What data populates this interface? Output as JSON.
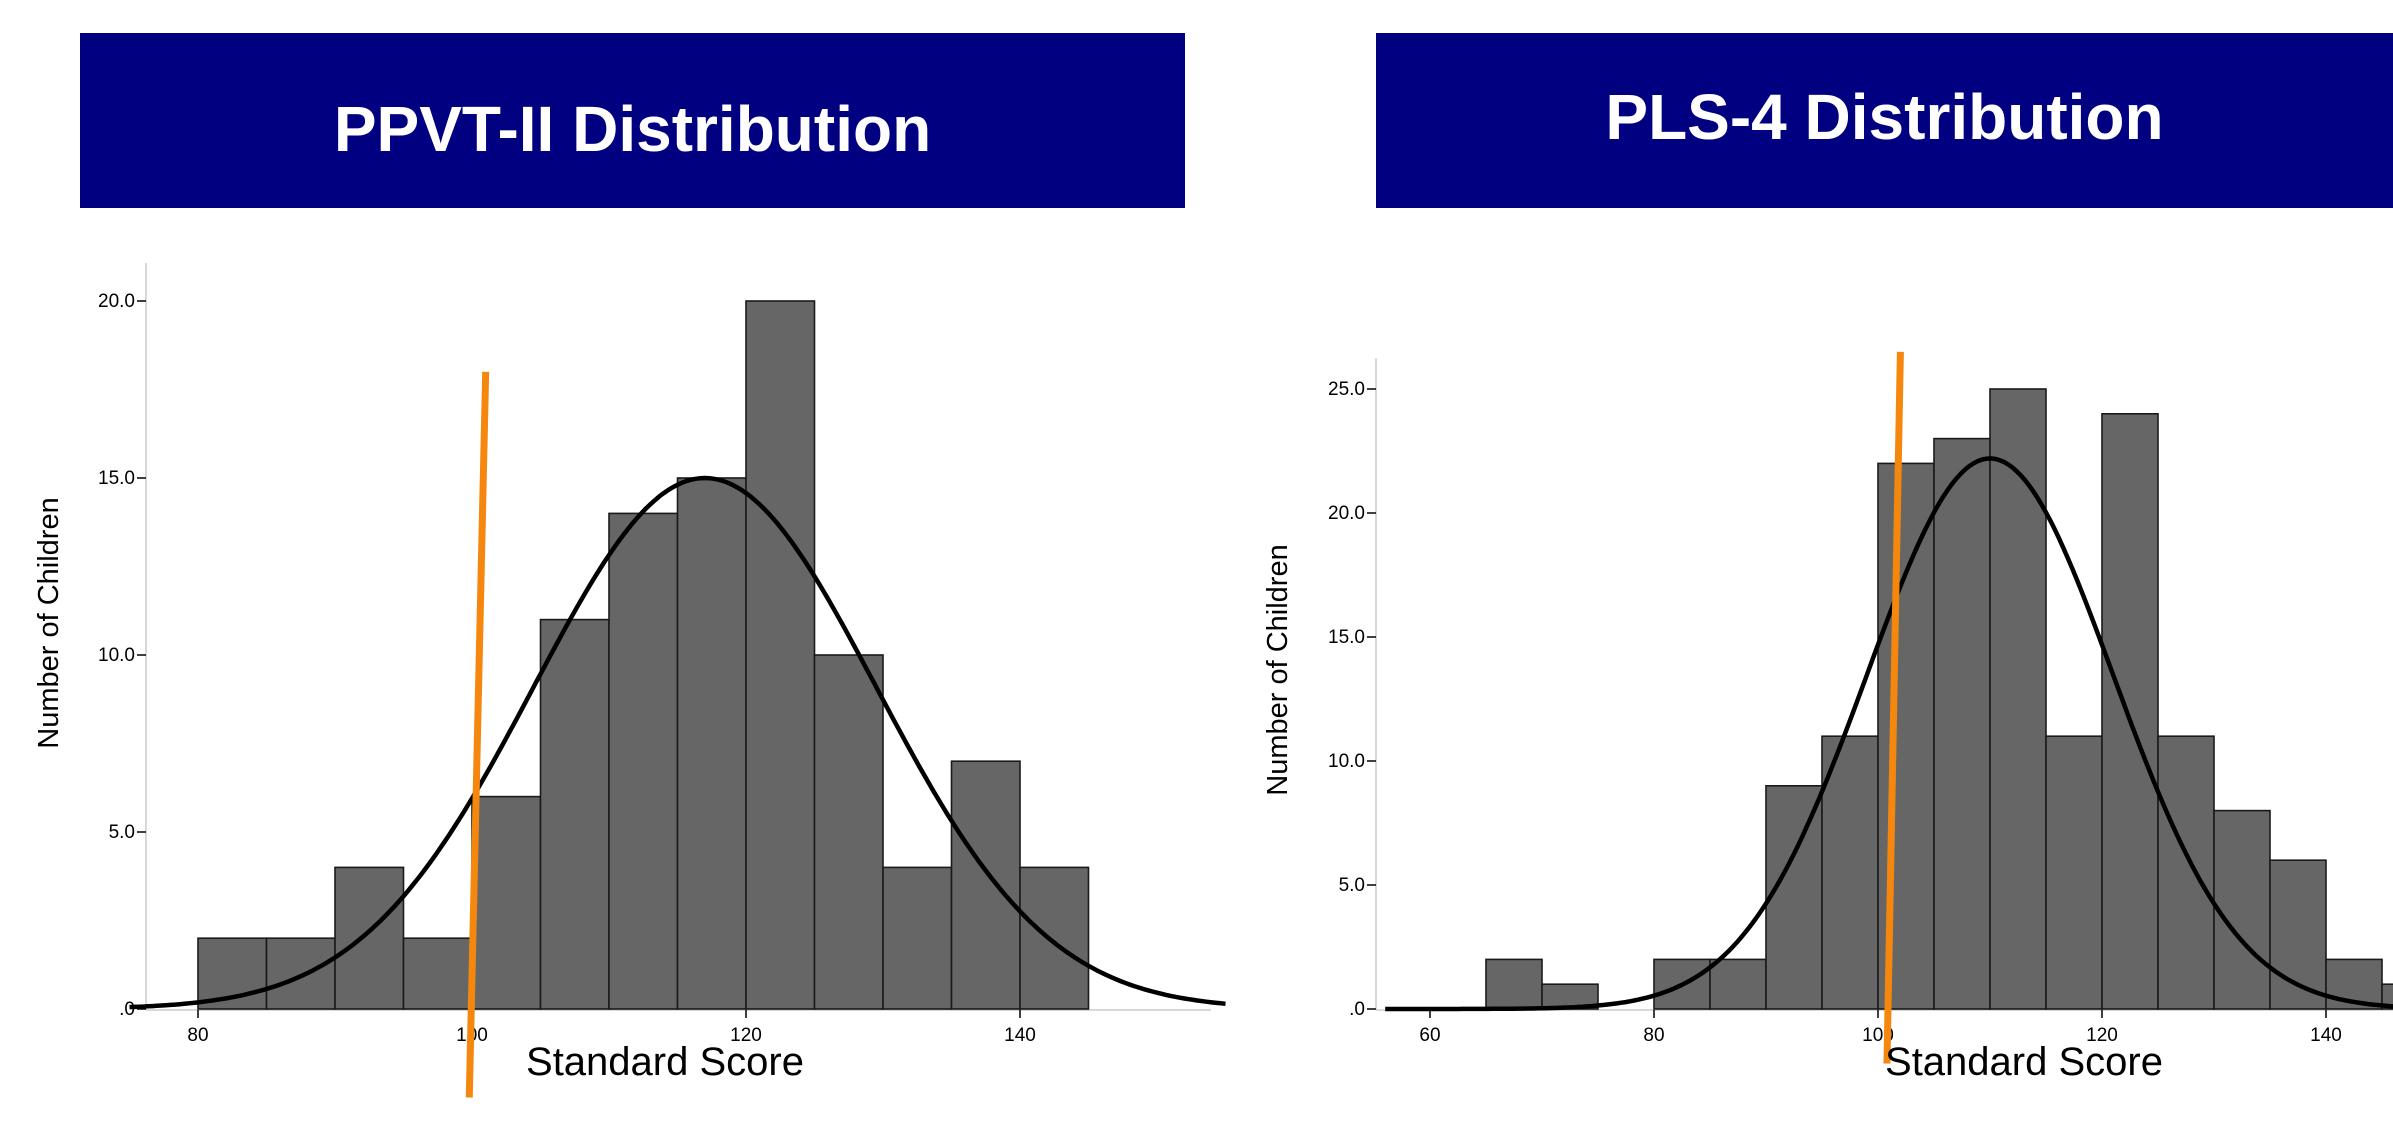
{
  "banners": {
    "left": "PPVT-II Distribution",
    "right": "PLS-4 Distribution"
  },
  "colors": {
    "banner": "#000080",
    "bar_fill": "#666666",
    "bar_stroke": "#1a1a1a",
    "curve": "#000000",
    "marker_line": "#f5870f"
  },
  "chart_data": [
    {
      "type": "bar",
      "title": "PPVT-II Distribution",
      "xlabel": "Standard Score",
      "ylabel": "Number of Children",
      "xlim": [
        75,
        155
      ],
      "ylim": [
        0,
        20
      ],
      "xticks": [
        80,
        100,
        120,
        140
      ],
      "yticks": [
        0,
        5,
        10,
        15,
        20
      ],
      "xtick_labels": [
        "80",
        "100",
        "120",
        "140"
      ],
      "ytick_labels": [
        ".0",
        "5.0",
        "10.0",
        "15.0",
        "20.0"
      ],
      "bin_width": 5,
      "bins": [
        {
          "x0": 80,
          "value": 2
        },
        {
          "x0": 85,
          "value": 2
        },
        {
          "x0": 90,
          "value": 4
        },
        {
          "x0": 95,
          "value": 2
        },
        {
          "x0": 100,
          "value": 6
        },
        {
          "x0": 105,
          "value": 11
        },
        {
          "x0": 110,
          "value": 14
        },
        {
          "x0": 115,
          "value": 15
        },
        {
          "x0": 120,
          "value": 20
        },
        {
          "x0": 125,
          "value": 10
        },
        {
          "x0": 130,
          "value": 4
        },
        {
          "x0": 135,
          "value": 7
        },
        {
          "x0": 140,
          "value": 4
        }
      ],
      "normal_curve": {
        "mean": 117,
        "sd": 12.5,
        "peak": 15
      },
      "marker_line": {
        "x_top": 101,
        "y_top": 18,
        "x_bottom": 99.8,
        "y_bottom": -2.5
      },
      "grid": false
    },
    {
      "type": "bar",
      "title": "PLS-4 Distribution",
      "xlabel": "Standard Score",
      "ylabel": "Number of Children",
      "xlim": [
        56,
        148
      ],
      "ylim": [
        0,
        25
      ],
      "xticks": [
        60,
        80,
        100,
        120,
        140
      ],
      "yticks": [
        0,
        5,
        10,
        15,
        20,
        25
      ],
      "xtick_labels": [
        "60",
        "80",
        "100",
        "120",
        "140"
      ],
      "ytick_labels": [
        ".0",
        "5.0",
        "10.0",
        "15.0",
        "20.0",
        "25.0"
      ],
      "bin_width": 5,
      "bins": [
        {
          "x0": 65,
          "value": 2
        },
        {
          "x0": 70,
          "value": 1
        },
        {
          "x0": 80,
          "value": 2
        },
        {
          "x0": 85,
          "value": 2
        },
        {
          "x0": 90,
          "value": 9
        },
        {
          "x0": 95,
          "value": 11
        },
        {
          "x0": 100,
          "value": 22
        },
        {
          "x0": 105,
          "value": 23
        },
        {
          "x0": 110,
          "value": 25
        },
        {
          "x0": 115,
          "value": 11
        },
        {
          "x0": 120,
          "value": 24
        },
        {
          "x0": 125,
          "value": 11
        },
        {
          "x0": 130,
          "value": 8
        },
        {
          "x0": 135,
          "value": 6
        },
        {
          "x0": 140,
          "value": 2
        },
        {
          "x0": 145,
          "value": 1
        }
      ],
      "normal_curve": {
        "mean": 110,
        "sd": 11,
        "peak": 22.2
      },
      "marker_line": {
        "x_top": 102,
        "y_top": 26.5,
        "x_bottom": 100.8,
        "y_bottom": -2.2
      },
      "grid": false
    }
  ]
}
